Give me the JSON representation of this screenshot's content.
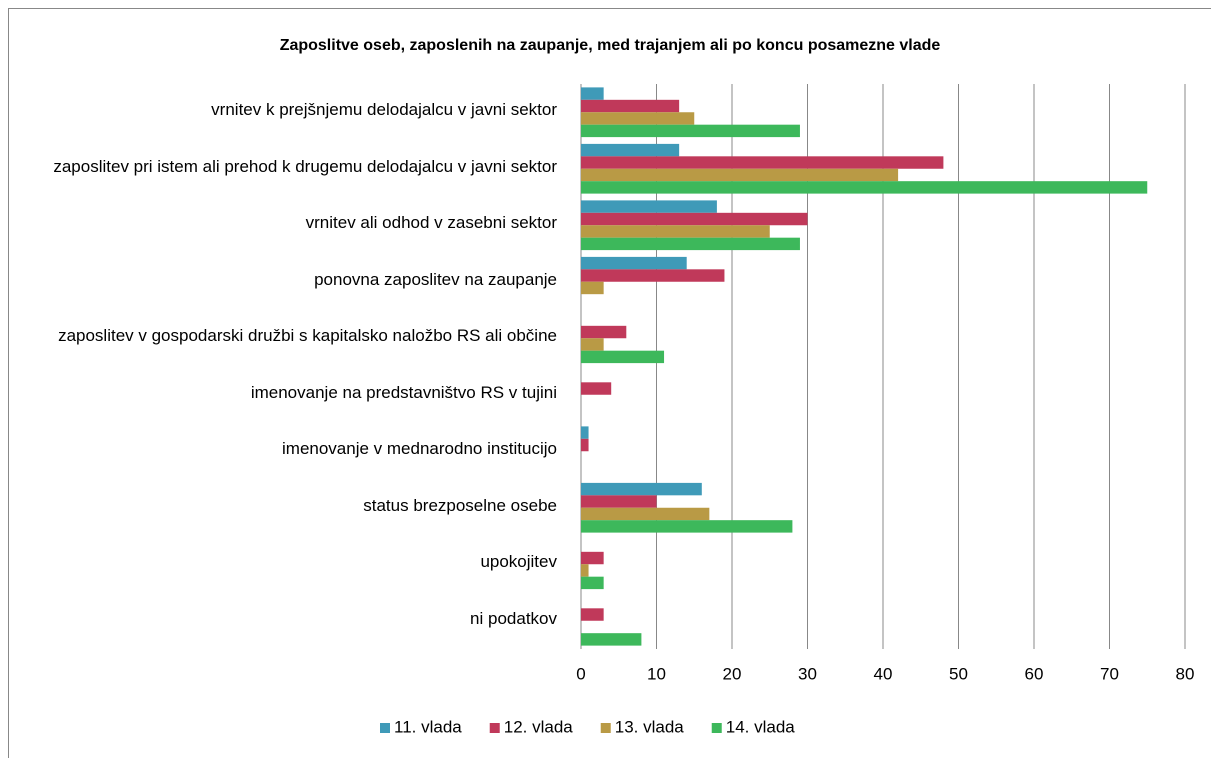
{
  "chart_data": {
    "type": "hbar",
    "title": "Zaposlitve oseb, zaposlenih na zaupanje, med trajanjem ali po koncu posamezne vlade",
    "categories": [
      "vrnitev k prejšnjemu delodajalcu v javni sektor",
      "zaposlitev pri istem ali prehod k drugemu delodajalcu v javni sektor",
      "vrnitev ali odhod v zasebni sektor",
      "ponovna zaposlitev na zaupanje",
      "zaposlitev v gospodarski družbi s kapitalsko naložbo RS ali občine",
      "imenovanje na predstavništvo RS v tujini",
      "imenovanje v mednarodno institucijo",
      "status brezposelne osebe",
      "upokojitev",
      "ni podatkov"
    ],
    "series": [
      {
        "name": "11. vlada",
        "color": "#3f9ab8",
        "values": [
          3,
          13,
          18,
          14,
          0,
          0,
          1,
          16,
          0,
          0
        ]
      },
      {
        "name": "12. vlada",
        "color": "#c0395a",
        "values": [
          13,
          48,
          30,
          19,
          6,
          4,
          1,
          10,
          3,
          3
        ]
      },
      {
        "name": "13. vlada",
        "color": "#b99a45",
        "values": [
          15,
          42,
          25,
          3,
          3,
          0,
          0,
          17,
          1,
          0
        ]
      },
      {
        "name": "14. vlada",
        "color": "#3db85b",
        "values": [
          29,
          75,
          29,
          0,
          11,
          0,
          0,
          28,
          3,
          8
        ]
      }
    ],
    "xlim": [
      0,
      80
    ],
    "xticks": [
      0,
      10,
      20,
      30,
      40,
      50,
      60,
      70,
      80
    ],
    "grid": true,
    "legend": "bottom"
  }
}
